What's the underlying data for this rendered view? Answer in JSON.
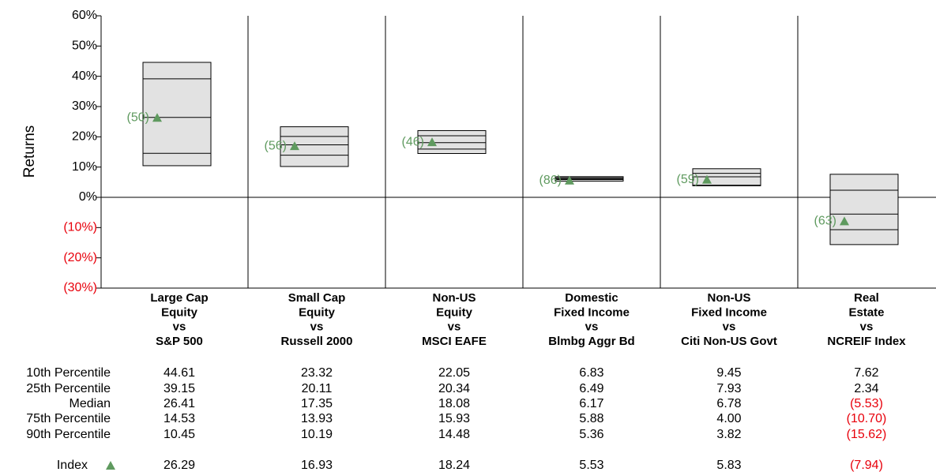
{
  "chart_data": {
    "type": "percentile",
    "y_label": "Returns",
    "ylim": [
      -30,
      60
    ],
    "yticks": [
      {
        "value": 60,
        "label": "60%"
      },
      {
        "value": 50,
        "label": "50%"
      },
      {
        "value": 40,
        "label": "40%"
      },
      {
        "value": 30,
        "label": "30%"
      },
      {
        "value": 20,
        "label": "20%"
      },
      {
        "value": 10,
        "label": "10%"
      },
      {
        "value": 0,
        "label": "0%"
      },
      {
        "value": -10,
        "label": "(10%)"
      },
      {
        "value": -20,
        "label": "(20%)"
      },
      {
        "value": -30,
        "label": "(30%)"
      }
    ],
    "negative_color": "#e8000b",
    "box_color": "#e2e2e2",
    "categories": [
      [
        "Large Cap",
        "Equity",
        "vs",
        "S&P 500"
      ],
      [
        "Small Cap",
        "Equity",
        "vs",
        "Russell 2000"
      ],
      [
        "Non-US",
        "Equity",
        "vs",
        "MSCI EAFE"
      ],
      [
        "Domestic",
        "Fixed Income",
        "vs",
        "Blmbg Aggr Bd"
      ],
      [
        "Non-US",
        "Fixed Income",
        "vs",
        "Citi Non-US Govt"
      ],
      [
        "Real",
        "Estate",
        "vs",
        "NCREIF Index"
      ]
    ],
    "series": [
      {
        "name": "10th Percentile",
        "values": [
          44.61,
          23.32,
          22.05,
          6.83,
          9.45,
          7.62
        ],
        "value_labels": [
          "44.61",
          "23.32",
          "22.05",
          "6.83",
          "9.45",
          "7.62"
        ]
      },
      {
        "name": "25th Percentile",
        "values": [
          39.15,
          20.11,
          20.34,
          6.49,
          7.93,
          2.34
        ],
        "value_labels": [
          "39.15",
          "20.11",
          "20.34",
          "6.49",
          "7.93",
          "2.34"
        ]
      },
      {
        "name": "Median",
        "values": [
          26.41,
          17.35,
          18.08,
          6.17,
          6.78,
          -5.53
        ],
        "value_labels": [
          "26.41",
          "17.35",
          "18.08",
          "6.17",
          "6.78",
          "(5.53)"
        ]
      },
      {
        "name": "75th Percentile",
        "values": [
          14.53,
          13.93,
          15.93,
          5.88,
          4.0,
          -10.7
        ],
        "value_labels": [
          "14.53",
          "13.93",
          "15.93",
          "5.88",
          "4.00",
          "(10.70)"
        ]
      },
      {
        "name": "90th Percentile",
        "values": [
          10.45,
          10.19,
          14.48,
          5.36,
          3.82,
          -15.62
        ],
        "value_labels": [
          "10.45",
          "10.19",
          "14.48",
          "5.36",
          "3.82",
          "(15.62)"
        ]
      }
    ],
    "index": {
      "name": "Index",
      "color": "#5f9a5f",
      "values": [
        26.29,
        16.93,
        18.24,
        5.53,
        5.83,
        -7.94
      ],
      "value_labels": [
        "26.29",
        "16.93",
        "18.24",
        "5.53",
        "5.83",
        "(7.94)"
      ],
      "ranks": [
        50,
        56,
        46,
        86,
        59,
        63
      ],
      "rank_labels": [
        "(50)",
        "(56)",
        "(46)",
        "(86)",
        "(59)",
        "(63)"
      ]
    }
  }
}
